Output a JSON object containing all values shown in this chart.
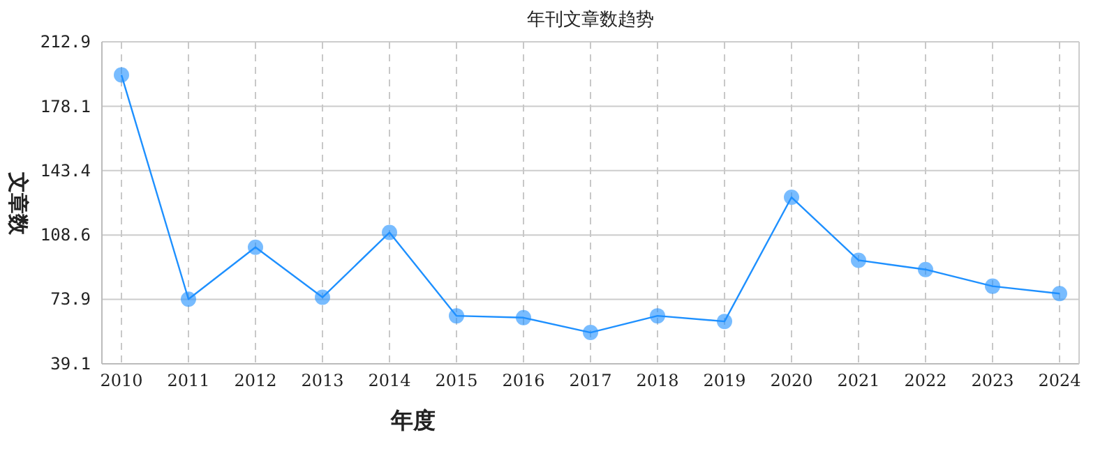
{
  "chart_data": {
    "type": "line",
    "title": "年刊文章数趋势",
    "xlabel": "年度",
    "ylabel": "文章数",
    "categories": [
      "2010",
      "2011",
      "2012",
      "2013",
      "2014",
      "2015",
      "2016",
      "2017",
      "2018",
      "2019",
      "2020",
      "2021",
      "2022",
      "2023",
      "2024"
    ],
    "series": [
      {
        "color": "#1e90ff",
        "values": [
          195,
          74,
          102,
          75,
          110,
          65,
          64,
          56,
          65,
          62,
          129,
          95,
          90,
          81,
          77
        ]
      }
    ],
    "ylim": [
      39.1,
      212.9
    ],
    "yticks": [
      39.1,
      73.9,
      108.6,
      143.4,
      178.1,
      212.9
    ],
    "grid": true,
    "marker": "circle"
  }
}
